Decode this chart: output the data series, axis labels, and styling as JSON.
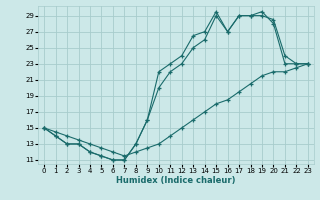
{
  "xlabel": "Humidex (Indice chaleur)",
  "bg_color": "#cce8e8",
  "grid_color": "#a8cccc",
  "line_color": "#1a6b6b",
  "xlim": [
    -0.5,
    23.5
  ],
  "ylim": [
    10.5,
    30.2
  ],
  "xticks": [
    0,
    1,
    2,
    3,
    4,
    5,
    6,
    7,
    8,
    9,
    10,
    11,
    12,
    13,
    14,
    15,
    16,
    17,
    18,
    19,
    20,
    21,
    22,
    23
  ],
  "yticks": [
    11,
    13,
    15,
    17,
    19,
    21,
    23,
    25,
    27,
    29
  ],
  "line1_x": [
    0,
    1,
    2,
    3,
    4,
    5,
    6,
    7,
    8,
    9,
    10,
    11,
    12,
    13,
    14,
    15,
    16,
    17,
    18,
    19,
    20,
    21,
    22,
    23
  ],
  "line1_y": [
    15,
    14,
    13,
    13,
    12,
    11.5,
    11,
    11,
    13,
    16,
    22,
    23,
    24,
    26.5,
    27,
    29.5,
    27,
    29,
    29,
    29,
    28.5,
    24,
    23,
    23
  ],
  "line2_x": [
    0,
    1,
    2,
    3,
    4,
    5,
    6,
    7,
    8,
    9,
    10,
    11,
    12,
    13,
    14,
    15,
    16,
    17,
    18,
    19,
    20,
    21,
    22,
    23
  ],
  "line2_y": [
    15,
    14,
    13,
    13,
    12,
    11.5,
    11,
    11,
    13,
    16,
    20,
    22,
    23,
    25,
    26,
    29,
    27,
    29,
    29,
    29.5,
    28,
    23,
    23,
    23
  ],
  "line3_x": [
    0,
    1,
    2,
    3,
    4,
    5,
    6,
    7,
    8,
    9,
    10,
    11,
    12,
    13,
    14,
    15,
    16,
    17,
    18,
    19,
    20,
    21,
    22,
    23
  ],
  "line3_y": [
    15,
    14.5,
    14,
    13.5,
    13,
    12.5,
    12,
    11.5,
    12,
    12.5,
    13,
    14,
    15,
    16,
    17,
    18,
    18.5,
    19.5,
    20.5,
    21.5,
    22,
    22,
    22.5,
    23
  ]
}
